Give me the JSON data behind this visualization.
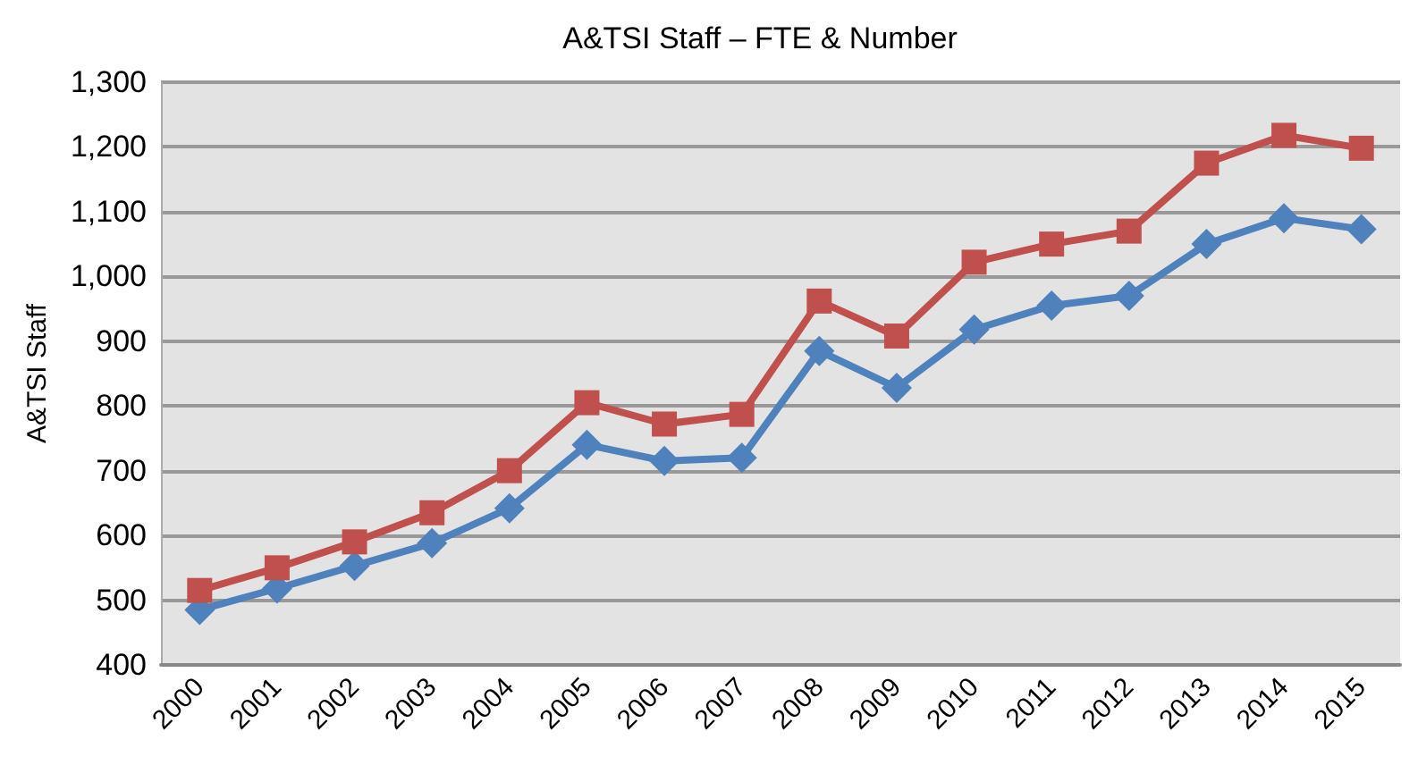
{
  "chart_data": {
    "type": "line",
    "title": "A&TSI Staff – FTE & Number",
    "ylabel": "A&TSI Staff",
    "categories": [
      "2000",
      "2001",
      "2002",
      "2003",
      "2004",
      "2005",
      "2006",
      "2007",
      "2008",
      "2009",
      "2010",
      "2011",
      "2012",
      "2013",
      "2014",
      "2015"
    ],
    "series": [
      {
        "color": "#c0504d",
        "marker": "square",
        "values": [
          515,
          550,
          590,
          635,
          700,
          805,
          772,
          787,
          962,
          908,
          1022,
          1050,
          1070,
          1175,
          1218,
          1198
        ]
      },
      {
        "color": "#4f81bd",
        "marker": "diamond",
        "values": [
          485,
          518,
          553,
          588,
          642,
          740,
          715,
          720,
          885,
          828,
          918,
          955,
          970,
          1050,
          1090,
          1073
        ]
      }
    ],
    "ylim": [
      400,
      1300
    ],
    "yticks": [
      400,
      500,
      600,
      700,
      800,
      900,
      {
        "value": 1000,
        "label": "1,000"
      },
      {
        "value": 1100,
        "label": "1,100"
      },
      {
        "value": 1200,
        "label": "1,200"
      },
      {
        "value": 1300,
        "label": "1,300"
      }
    ],
    "grid": "y"
  }
}
